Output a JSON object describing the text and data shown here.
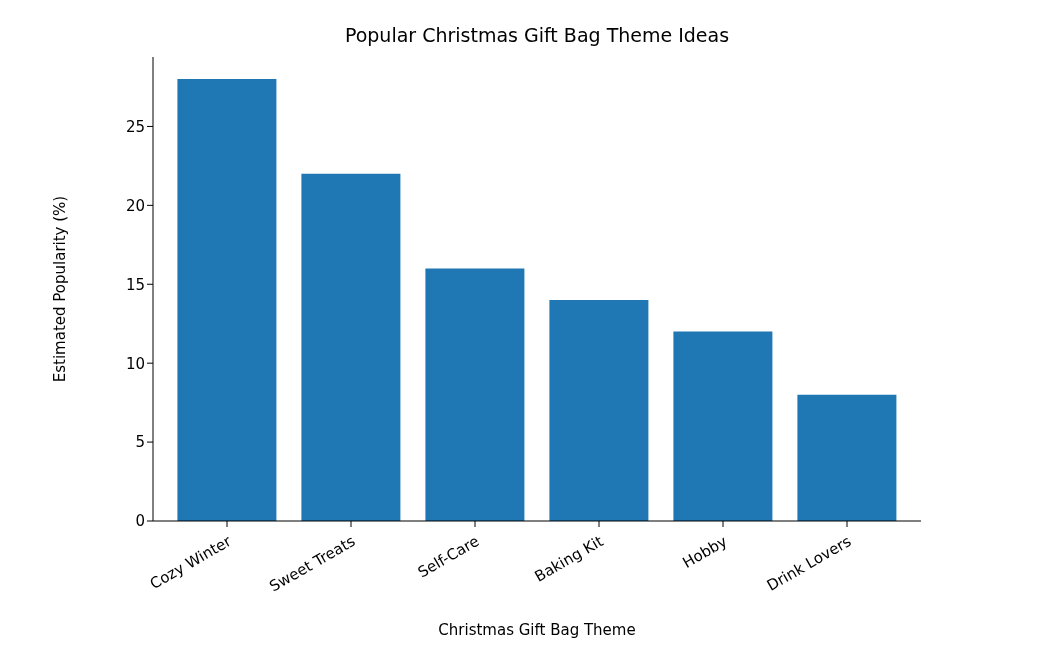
{
  "chart_data": {
    "type": "bar",
    "title": "Popular Christmas Gift Bag Theme Ideas",
    "xlabel": "Christmas Gift Bag Theme",
    "ylabel": "Estimated Popularity (%)",
    "categories": [
      "Cozy Winter",
      "Sweet Treats",
      "Self-Care",
      "Baking Kit",
      "Hobby",
      "Drink Lovers"
    ],
    "values": [
      28,
      22,
      16,
      14,
      12,
      8
    ],
    "color": "#1f77b4",
    "ylim": [
      0,
      29.4
    ],
    "yticks": [
      0,
      5,
      10,
      15,
      20,
      25
    ],
    "grid": false,
    "legend": false
  }
}
